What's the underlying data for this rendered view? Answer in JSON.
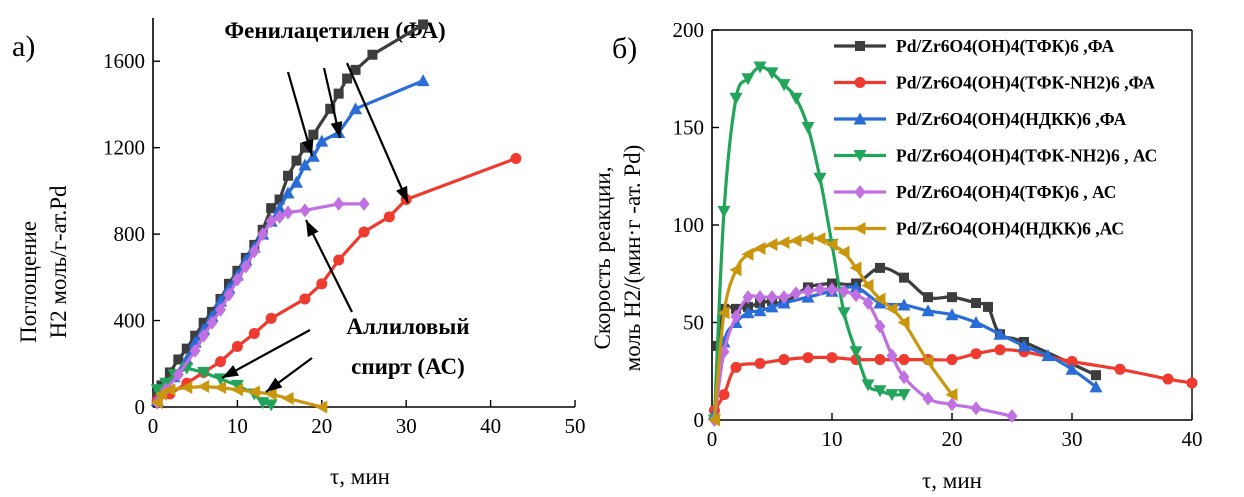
{
  "chart_data": [
    {
      "type": "line",
      "panel_label": "а)",
      "title": "Фенилацетилен (ФА)",
      "xlabel": "τ, мин",
      "ylabel": [
        "Поглощение",
        "H2 моль/г-ат.Pd"
      ],
      "xlim": [
        0,
        50
      ],
      "ylim": [
        0,
        1800
      ],
      "xticks": [
        0,
        10,
        20,
        30,
        40,
        50
      ],
      "yticks": [
        0,
        400,
        800,
        1200,
        1600
      ],
      "grid": false,
      "annotations": [
        {
          "text": "Аллиловый",
          "text2": "спирт (АС)"
        }
      ],
      "series": [
        {
          "color": "#3d3d3d",
          "marker": "square",
          "x": [
            0.5,
            1,
            2,
            3,
            4,
            5,
            6,
            7,
            8,
            9,
            10,
            11,
            12,
            13,
            14,
            15,
            16,
            17,
            18,
            19,
            21,
            22,
            23,
            24,
            26,
            32
          ],
          "y": [
            50,
            100,
            160,
            220,
            270,
            330,
            390,
            440,
            500,
            570,
            630,
            690,
            750,
            820,
            920,
            960,
            1070,
            1140,
            1200,
            1260,
            1380,
            1450,
            1520,
            1560,
            1630,
            1770
          ]
        },
        {
          "color": "#ef3a2f",
          "marker": "circle",
          "x": [
            0.5,
            2,
            4,
            6,
            8,
            10,
            12,
            14,
            18,
            20,
            22,
            25,
            28,
            30,
            43
          ],
          "y": [
            30,
            60,
            110,
            160,
            210,
            280,
            340,
            410,
            500,
            570,
            680,
            810,
            880,
            960,
            1150
          ]
        },
        {
          "color": "#2a6dd6",
          "marker": "triangle-up",
          "x": [
            0.5,
            1.5,
            2.5,
            4,
            5,
            6,
            7,
            8,
            9,
            10,
            11,
            12,
            13,
            14,
            15,
            16,
            17,
            18,
            19,
            20,
            22,
            24,
            32
          ],
          "y": [
            30,
            90,
            140,
            220,
            300,
            360,
            420,
            490,
            550,
            610,
            680,
            740,
            800,
            860,
            920,
            990,
            1040,
            1120,
            1160,
            1230,
            1270,
            1380,
            1510
          ]
        },
        {
          "color": "#22a45a",
          "marker": "triangle-down",
          "x": [
            0.5,
            1.5,
            2.5,
            4,
            6,
            8,
            10,
            12,
            13,
            14
          ],
          "y": [
            80,
            110,
            150,
            180,
            160,
            130,
            100,
            60,
            20,
            10
          ]
        },
        {
          "color": "#c070e0",
          "marker": "diamond",
          "x": [
            0.5,
            1.5,
            3,
            5,
            6,
            7,
            8,
            9,
            10,
            11,
            12,
            13,
            14,
            15,
            16,
            18,
            22,
            25
          ],
          "y": [
            20,
            80,
            150,
            260,
            330,
            390,
            450,
            520,
            590,
            650,
            720,
            800,
            860,
            880,
            900,
            910,
            940,
            940
          ]
        },
        {
          "color": "#c9960e",
          "marker": "triangle-left",
          "x": [
            0.5,
            1,
            2,
            4,
            6,
            8,
            10,
            12,
            14,
            16,
            20
          ],
          "y": [
            20,
            60,
            80,
            90,
            95,
            90,
            80,
            70,
            60,
            40,
            0
          ]
        }
      ]
    },
    {
      "type": "line",
      "panel_label": "б)",
      "xlabel": "τ, мин",
      "ylabel": [
        "Скорость реакции,",
        "моль H2/(мин·г -ат. Pd)"
      ],
      "xlim": [
        0,
        40
      ],
      "ylim": [
        0,
        200
      ],
      "xticks": [
        0,
        10,
        20,
        30,
        40
      ],
      "yticks": [
        0,
        50,
        100,
        150,
        200
      ],
      "grid": false,
      "legend_position": "top-right",
      "series": [
        {
          "name": "Pd/Zr6O4(OH)4(ТФК)6 ,ФА",
          "color": "#3d3d3d",
          "marker": "square",
          "x": [
            0.5,
            1,
            2,
            3,
            4,
            5,
            6,
            8,
            10,
            12,
            14,
            16,
            18,
            20,
            22,
            23,
            24,
            26,
            32
          ],
          "y": [
            38,
            57,
            57,
            58,
            60,
            61,
            60,
            68,
            70,
            70,
            78,
            73,
            63,
            63,
            60,
            58,
            44,
            40,
            23
          ]
        },
        {
          "name": "Pd/Zr6O4(OH)4(ТФК-NH2)6 ,ФА",
          "color": "#ef3a2f",
          "marker": "circle",
          "x": [
            0.2,
            1,
            2,
            4,
            6,
            8,
            10,
            12,
            14,
            16,
            18,
            20,
            22,
            24,
            26,
            30,
            34,
            38,
            40
          ],
          "y": [
            5,
            13,
            27,
            29,
            31,
            32,
            32,
            31,
            31,
            31,
            31,
            31,
            34,
            36,
            35,
            30,
            26,
            21,
            19
          ]
        },
        {
          "name": "Pd/Zr6O4(OH)4(НДКК)6 ,ФА",
          "color": "#2a6dd6",
          "marker": "triangle-up",
          "x": [
            0.2,
            1,
            2,
            3,
            4,
            5,
            6,
            8,
            10,
            12,
            14,
            16,
            18,
            20,
            22,
            24,
            26,
            28,
            30,
            32
          ],
          "y": [
            3,
            40,
            50,
            55,
            56,
            58,
            60,
            63,
            66,
            68,
            60,
            59,
            56,
            54,
            50,
            44,
            38,
            33,
            26,
            17
          ]
        },
        {
          "name": "Pd/Zr6O4(OH)4(ТФК-NH2)6 , АС",
          "color": "#22a45a",
          "marker": "triangle-down",
          "x": [
            0.2,
            1,
            2,
            3,
            4,
            5,
            6,
            7,
            8,
            9,
            10,
            11,
            12,
            13,
            14,
            15,
            16
          ],
          "y": [
            0,
            107,
            165,
            175,
            181,
            178,
            172,
            165,
            150,
            124,
            90,
            55,
            35,
            18,
            15,
            13,
            13
          ]
        },
        {
          "name": "Pd/Zr6O4(OH)4(ТФК)6  , АС",
          "color": "#c070e0",
          "marker": "diamond",
          "x": [
            0.2,
            1,
            2,
            3,
            4,
            5,
            6,
            7,
            8,
            9,
            10,
            11,
            12,
            13,
            14,
            15,
            16,
            18,
            20,
            22,
            25
          ],
          "y": [
            0,
            35,
            53,
            63,
            63,
            63,
            63,
            65,
            66,
            67,
            67,
            66,
            64,
            60,
            48,
            33,
            22,
            11,
            8,
            6,
            2
          ]
        },
        {
          "name": "Pd/Zr6O4(OH)4(НДКК)6  ,АС",
          "color": "#c9960e",
          "marker": "triangle-left",
          "x": [
            0.2,
            1,
            2,
            3,
            4,
            5,
            6,
            7,
            8,
            9,
            10,
            11,
            12,
            13,
            14,
            15,
            16,
            18,
            20
          ],
          "y": [
            0,
            55,
            77,
            85,
            88,
            90,
            91,
            92,
            93,
            93,
            90,
            86,
            78,
            69,
            62,
            57,
            50,
            30,
            13
          ]
        }
      ]
    }
  ]
}
